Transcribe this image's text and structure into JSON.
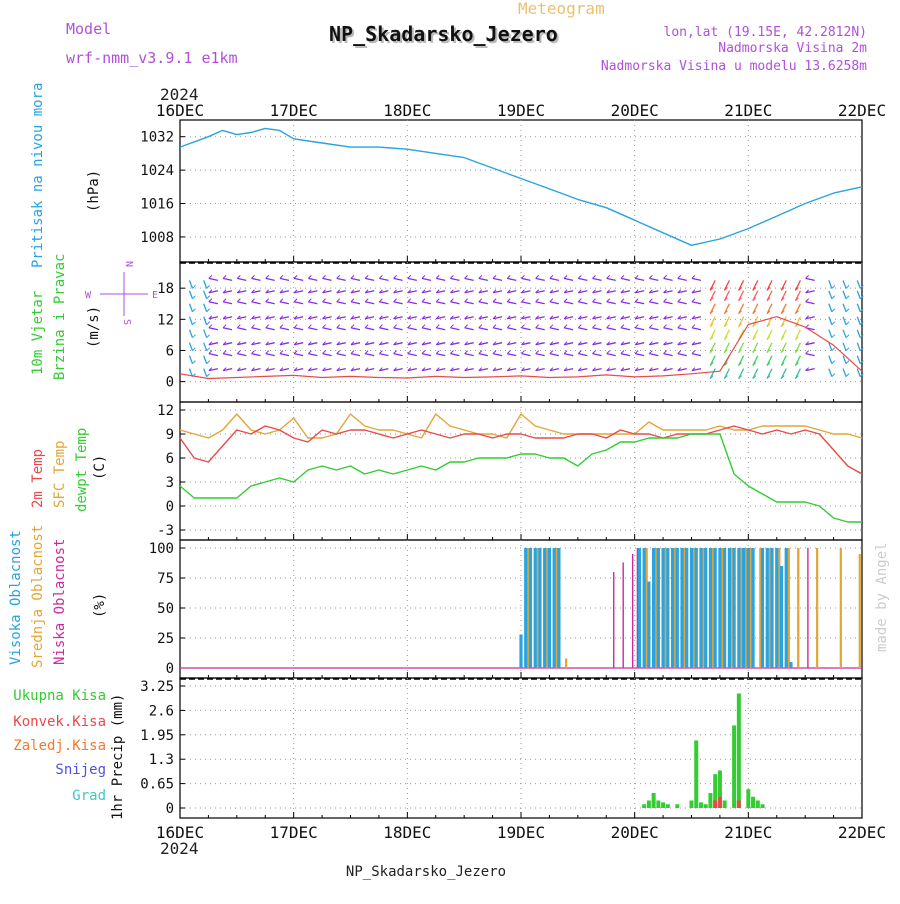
{
  "header": {
    "model_label": "Model",
    "model_name": "wrf-nmm_v3.9.1 e1km",
    "meteogram_label": "Meteogram",
    "station": "NP_Skadarsko_Jezero",
    "lonlat": "lon,lat (19.15E, 42.2812N)",
    "altitude": "Nadmorska Visina 2m",
    "model_altitude": "Nadmorska Visina u modelu 13.6258m",
    "footer_station": "NP_Skadarsko_Jezero",
    "credit": "made by Angel"
  },
  "colors": {
    "pressure": "#29a3e0",
    "temp2m": "#e84a4a",
    "sfc_temp": "#e3a535",
    "dewpt": "#33cc33",
    "high_cloud": "#2aa3e0",
    "mid_cloud": "#e3a535",
    "low_cloud": "#cc2aa0",
    "wind_calm": "#8a2be2",
    "total_precip": "#33cc33",
    "conv_precip": "#e84a4a",
    "frz_precip": "#f07a30",
    "snow": "#5050e0",
    "hail": "#3cc8c8",
    "title_purple": "#b050d8",
    "meteogram_gold": "#e8c070"
  },
  "chart_data": [
    {
      "type": "line",
      "panel": "pressure",
      "ylabel_main": "Pritisak na nivou mora",
      "ylabel_unit": "(hPa)",
      "yticks": [
        "1032",
        "1024",
        "1016",
        "1008"
      ],
      "ylim": [
        1002,
        1036
      ],
      "x_hours": [
        0,
        6,
        9,
        12,
        15,
        18,
        21,
        24,
        30,
        36,
        42,
        48,
        54,
        60,
        66,
        72,
        78,
        84,
        90,
        96,
        102,
        108,
        114,
        120,
        126,
        132,
        138,
        144
      ],
      "series": [
        {
          "values": [
            1029.5,
            1032,
            1033.5,
            1032.5,
            1033,
            1034,
            1033.5,
            1031.5,
            1030.5,
            1029.5,
            1029.5,
            1029,
            1028,
            1027,
            1024.5,
            1022,
            1019.5,
            1017,
            1015,
            1012,
            1009,
            1006,
            1007.5,
            1010,
            1013,
            1016,
            1018.5,
            1020
          ]
        }
      ]
    },
    {
      "type": "line",
      "panel": "wind",
      "ylabel_main": "10m Vjetar",
      "ylabel_main2": "Brzina i Pravac",
      "ylabel_unit": "(m/s)",
      "compass": {
        "n": "N",
        "s": "S",
        "e": "E",
        "w": "W"
      },
      "yticks": [
        "18",
        "12",
        "6",
        "0"
      ],
      "ylim": [
        -2,
        21.5
      ],
      "x_hours": [
        0,
        6,
        12,
        18,
        24,
        30,
        36,
        42,
        48,
        54,
        60,
        66,
        72,
        78,
        84,
        90,
        96,
        102,
        108,
        114,
        120,
        126,
        132,
        138,
        144
      ],
      "series": [
        {
          "name": "wind_speed",
          "values": [
            1.5,
            0.6,
            0.8,
            1.0,
            1.2,
            0.8,
            1.0,
            0.8,
            0.7,
            1.0,
            0.8,
            0.9,
            1.1,
            0.8,
            0.9,
            1.3,
            0.9,
            1.1,
            1.5,
            2.0,
            11.0,
            12.5,
            10.5,
            7.0,
            2.0
          ]
        }
      ]
    },
    {
      "type": "line",
      "panel": "temperature",
      "ylabel_main": "2m Temp",
      "ylabel_main2": "SFC Temp",
      "ylabel_main3": "dewpt Temp",
      "ylabel_unit": "(C)",
      "yticks": [
        "12",
        "9",
        "6",
        "3",
        "0",
        "-3"
      ],
      "ylim": [
        -3,
        12
      ],
      "x_hours": [
        0,
        3,
        6,
        9,
        12,
        15,
        18,
        21,
        24,
        27,
        30,
        33,
        36,
        39,
        42,
        45,
        48,
        51,
        54,
        57,
        60,
        63,
        66,
        69,
        72,
        75,
        78,
        81,
        84,
        87,
        90,
        93,
        96,
        99,
        102,
        105,
        108,
        111,
        114,
        117,
        120,
        123,
        126,
        129,
        132,
        135,
        138,
        141,
        144
      ],
      "series": [
        {
          "name": "2m Temp",
          "values": [
            8.5,
            6,
            5.5,
            7.5,
            9.5,
            9,
            10,
            9.5,
            8.5,
            8,
            9.5,
            9,
            9.5,
            9.5,
            9,
            8.5,
            9,
            9.5,
            9,
            8.5,
            9,
            9,
            8.5,
            9,
            9,
            8.5,
            8.5,
            8.5,
            9,
            9,
            8.5,
            9.5,
            9,
            9,
            8.5,
            9,
            9,
            9,
            9.5,
            10,
            9.5,
            9,
            9.5,
            9,
            9.5,
            9,
            7,
            5,
            4
          ]
        },
        {
          "name": "SFC Temp",
          "values": [
            9.5,
            9,
            8.5,
            9.5,
            11.5,
            9.5,
            9,
            9.5,
            11,
            8.5,
            8.5,
            9,
            11.5,
            10,
            9.5,
            9.5,
            9,
            8.5,
            11.5,
            10,
            9.5,
            9,
            9,
            8.5,
            11.5,
            10,
            9.5,
            9,
            9,
            9,
            9,
            9,
            9,
            10.5,
            9.5,
            9.5,
            9.5,
            9.5,
            10,
            9.5,
            9.5,
            10,
            10,
            10,
            10,
            9.5,
            9,
            9,
            8.5
          ]
        },
        {
          "name": "dewpt Temp",
          "values": [
            2.5,
            1,
            1,
            1,
            1,
            2.5,
            3,
            3.5,
            3,
            4.5,
            5,
            4.5,
            5,
            4,
            4.5,
            4,
            4.5,
            5,
            4.5,
            5.5,
            5.5,
            6,
            6,
            6,
            6.5,
            6.5,
            6,
            6,
            5,
            6.5,
            7,
            8,
            8,
            8.5,
            8.5,
            8.5,
            9,
            9,
            9,
            4,
            2.5,
            1.5,
            0.5,
            0.5,
            0.5,
            0,
            -1.5,
            -2,
            -2
          ]
        }
      ]
    },
    {
      "type": "bar",
      "panel": "cloud",
      "ylabel_main": "Visoka Oblacnost",
      "ylabel_main2": "Srednja Oblacnost",
      "ylabel_main3": "Niska Oblacnost",
      "ylabel_unit": "(%)",
      "yticks": [
        "100",
        "75",
        "50",
        "25",
        "0"
      ],
      "ylim": [
        0,
        100
      ],
      "series": [
        {
          "name": "Visoka",
          "x_hours": [
            72,
            73,
            74,
            75,
            76,
            77,
            78,
            79,
            80,
            97,
            98,
            99,
            100,
            101,
            102,
            103,
            104,
            105,
            106,
            107,
            108,
            109,
            110,
            111,
            112,
            113,
            114,
            115,
            116,
            117,
            118,
            119,
            120,
            121,
            123,
            124,
            125,
            126,
            127,
            128,
            129
          ],
          "values": [
            28,
            100,
            100,
            100,
            100,
            100,
            100,
            100,
            100,
            100,
            100,
            72,
            100,
            100,
            100,
            100,
            100,
            100,
            100,
            100,
            100,
            100,
            100,
            100,
            100,
            100,
            100,
            100,
            100,
            100,
            100,
            100,
            100,
            100,
            100,
            100,
            100,
            100,
            85,
            100,
            5
          ]
        },
        {
          "name": "Srednja",
          "x_hours": [
            73,
            75,
            77,
            79,
            81,
            98,
            100,
            102,
            104,
            106,
            108,
            110,
            112,
            114,
            116,
            118,
            119,
            120,
            122,
            124,
            126,
            128,
            130,
            134,
            139,
            143
          ],
          "values": [
            100,
            100,
            100,
            100,
            8,
            100,
            100,
            100,
            100,
            100,
            100,
            100,
            100,
            100,
            100,
            100,
            100,
            100,
            100,
            100,
            100,
            100,
            100,
            100,
            100,
            95
          ]
        },
        {
          "name": "Niska",
          "x_hours": [
            92,
            94,
            96,
            97,
            99,
            101,
            103,
            105,
            107,
            109,
            111,
            113,
            115,
            117,
            119,
            121,
            123,
            125,
            127,
            129,
            131,
            133
          ],
          "values": [
            80,
            88,
            95,
            100,
            100,
            100,
            100,
            100,
            100,
            100,
            100,
            100,
            100,
            100,
            100,
            100,
            100,
            100,
            100,
            100,
            100,
            100
          ]
        }
      ]
    },
    {
      "type": "bar",
      "panel": "precip",
      "ylabel_unit": "1hr Precip (mm)",
      "legend": [
        "Ukupna Kisa",
        "Konvek.Kisa",
        "Zaledj.Kisa",
        "Snijeg",
        "Grad"
      ],
      "yticks": [
        "3.25",
        "2.6",
        "1.95",
        "1.3",
        "0.65",
        "0"
      ],
      "ylim": [
        0,
        3.25
      ],
      "x_hours": [
        98,
        99,
        100,
        101,
        102,
        103,
        105,
        108,
        109,
        110,
        111,
        112,
        113,
        114,
        115,
        117,
        118,
        120,
        121,
        122,
        123
      ],
      "series": [
        {
          "name": "Ukupna Kisa",
          "values": [
            0.1,
            0.2,
            0.4,
            0.2,
            0.15,
            0.1,
            0.1,
            0.2,
            1.8,
            0.15,
            0.1,
            0.4,
            0.9,
            1.0,
            0.2,
            2.2,
            3.05,
            0.5,
            0.3,
            0.2,
            0.1
          ]
        },
        {
          "name": "Konvek.Kisa",
          "values": [
            0,
            0,
            0,
            0,
            0,
            0,
            0,
            0,
            0,
            0,
            0,
            0,
            0.2,
            0.3,
            0,
            0,
            0.2,
            0,
            0,
            0,
            0
          ]
        }
      ]
    }
  ],
  "x_axis": {
    "year": "2024",
    "labels": [
      "16DEC",
      "17DEC",
      "18DEC",
      "19DEC",
      "20DEC",
      "21DEC",
      "22DEC"
    ],
    "range_hours": [
      0,
      144
    ]
  }
}
